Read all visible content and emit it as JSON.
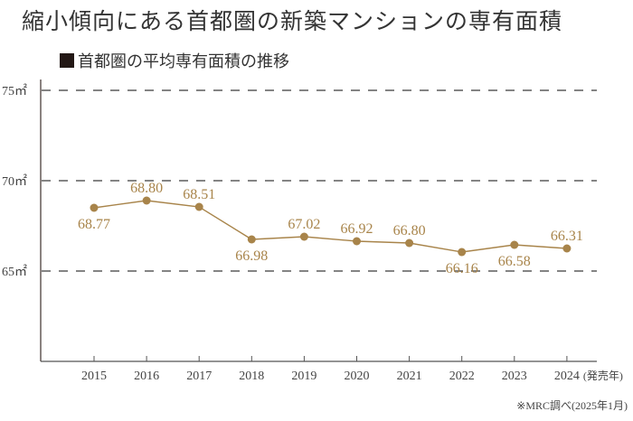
{
  "title": "縮小傾向にある首都圏の新築マンションの専有面積",
  "subtitle": "首都圏の平均専有面積の推移",
  "note": "※MRC調べ(2025年1月)",
  "x_unit": "(発売年)",
  "colors": {
    "line": "#a8844a",
    "axis": "#8a8280",
    "grid": "#3a3a3a",
    "text": "#444444"
  },
  "chart_data": {
    "type": "line",
    "title": "首都圏の平均専有面積の推移",
    "xlabel": "(発売年)",
    "ylabel": "㎡",
    "y_ticks": [
      "65㎡",
      "70㎡",
      "75㎡"
    ],
    "ylim": [
      60,
      75
    ],
    "grid": "dashed horizontal at 65, 70, 75",
    "categories": [
      "2015",
      "2016",
      "2017",
      "2018",
      "2019",
      "2020",
      "2021",
      "2022",
      "2023",
      "2024"
    ],
    "series": [
      {
        "name": "平均専有面積",
        "values": [
          68.77,
          68.8,
          68.51,
          66.98,
          67.02,
          66.92,
          66.8,
          66.16,
          66.58,
          66.31
        ],
        "labels": [
          "68.77",
          "68.80",
          "68.51",
          "66.98",
          "67.02",
          "66.92",
          "66.80",
          "66.16",
          "66.58",
          "66.31"
        ]
      }
    ]
  }
}
